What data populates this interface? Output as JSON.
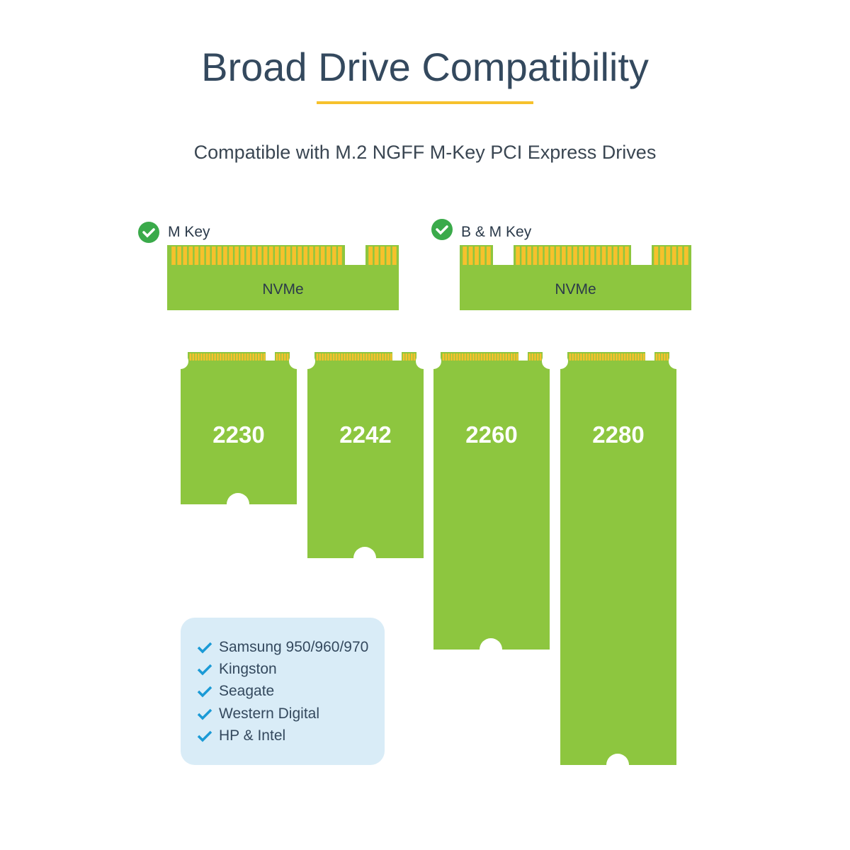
{
  "title": "Broad Drive Compatibility",
  "subtitle": "Compatible with M.2 NGFF M-Key PCI Express Drives",
  "keys": [
    {
      "label": "M Key",
      "interface": "NVMe"
    },
    {
      "label": "B & M Key",
      "interface": "NVMe"
    }
  ],
  "drives": [
    "2230",
    "2242",
    "2260",
    "2280"
  ],
  "brands": [
    "Samsung 950/960/970",
    "Kingston",
    "Seagate",
    "Western Digital",
    "HP & Intel"
  ],
  "colors": {
    "pcb": "#8dc63f",
    "pins": "#f6c12c",
    "check_badge": "#3aaa4a",
    "list_check": "#1a9ad6",
    "list_bg": "#d9ecf7",
    "accent": "#f6c12c"
  }
}
